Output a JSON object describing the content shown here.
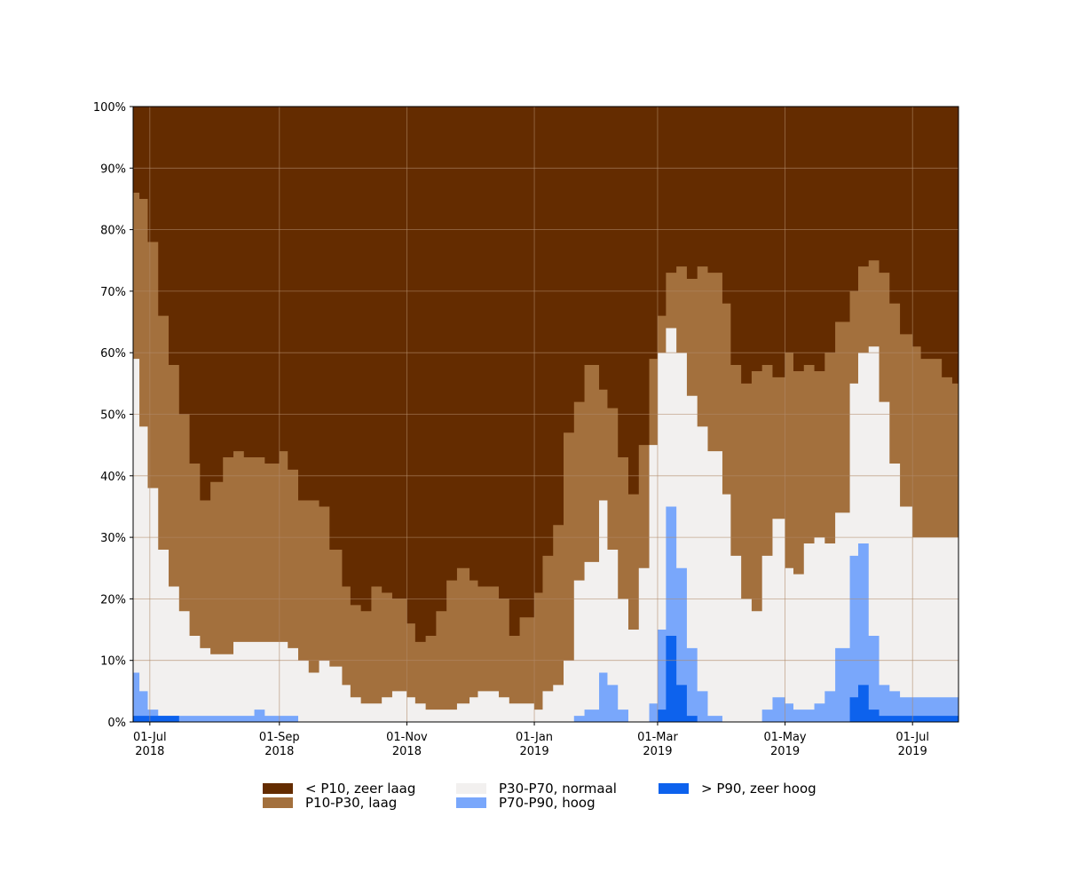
{
  "chart_data": {
    "type": "area",
    "stacked": true,
    "xlabel": "",
    "ylabel": "",
    "x_range": [
      "2018-06-23",
      "2019-07-23"
    ],
    "ylim": [
      0,
      100
    ],
    "grid": true,
    "legend_position": "bottom",
    "y_ticks": [
      "0%",
      "10%",
      "20%",
      "30%",
      "40%",
      "50%",
      "60%",
      "70%",
      "80%",
      "90%",
      "100%"
    ],
    "x_ticks": [
      {
        "date": "2018-07-01",
        "line1": "01-Jul",
        "line2": "2018"
      },
      {
        "date": "2018-09-01",
        "line1": "01-Sep",
        "line2": "2018"
      },
      {
        "date": "2018-11-01",
        "line1": "01-Nov",
        "line2": "2018"
      },
      {
        "date": "2019-01-01",
        "line1": "01-Jan",
        "line2": "2019"
      },
      {
        "date": "2019-03-01",
        "line1": "01-Mar",
        "line2": "2019"
      },
      {
        "date": "2019-05-01",
        "line1": "01-May",
        "line2": "2019"
      },
      {
        "date": "2019-07-01",
        "line1": "01-Jul",
        "line2": "2019"
      }
    ],
    "boundaries": {
      "x": [
        "2018-06-23",
        "2018-06-26",
        "2018-06-30",
        "2018-07-05",
        "2018-07-10",
        "2018-07-15",
        "2018-07-20",
        "2018-07-25",
        "2018-07-30",
        "2018-08-05",
        "2018-08-10",
        "2018-08-15",
        "2018-08-20",
        "2018-08-25",
        "2018-09-01",
        "2018-09-05",
        "2018-09-10",
        "2018-09-15",
        "2018-09-20",
        "2018-09-25",
        "2018-10-01",
        "2018-10-05",
        "2018-10-10",
        "2018-10-15",
        "2018-10-20",
        "2018-10-25",
        "2018-11-01",
        "2018-11-05",
        "2018-11-10",
        "2018-11-15",
        "2018-11-20",
        "2018-11-25",
        "2018-12-01",
        "2018-12-05",
        "2018-12-10",
        "2018-12-15",
        "2018-12-20",
        "2018-12-25",
        "2019-01-01",
        "2019-01-05",
        "2019-01-10",
        "2019-01-15",
        "2019-01-20",
        "2019-01-25",
        "2019-02-01",
        "2019-02-05",
        "2019-02-10",
        "2019-02-15",
        "2019-02-20",
        "2019-02-25",
        "2019-03-01",
        "2019-03-05",
        "2019-03-10",
        "2019-03-15",
        "2019-03-20",
        "2019-03-25",
        "2019-04-01",
        "2019-04-05",
        "2019-04-10",
        "2019-04-15",
        "2019-04-20",
        "2019-04-25",
        "2019-05-01",
        "2019-05-05",
        "2019-05-10",
        "2019-05-15",
        "2019-05-20",
        "2019-05-25",
        "2019-06-01",
        "2019-06-05",
        "2019-06-10",
        "2019-06-15",
        "2019-06-20",
        "2019-06-25",
        "2019-07-01",
        "2019-07-05",
        "2019-07-10",
        "2019-07-15",
        "2019-07-20",
        "2019-07-23"
      ],
      "le_p10": [
        86,
        85,
        78,
        66,
        58,
        50,
        42,
        36,
        39,
        43,
        44,
        43,
        43,
        42,
        44,
        41,
        36,
        36,
        35,
        28,
        22,
        19,
        18,
        22,
        21,
        20,
        16,
        13,
        14,
        18,
        23,
        25,
        23,
        22,
        22,
        20,
        14,
        17,
        21,
        27,
        32,
        47,
        52,
        58,
        54,
        51,
        43,
        37,
        45,
        59,
        66,
        73,
        74,
        72,
        74,
        73,
        68,
        58,
        55,
        57,
        58,
        56,
        60,
        57,
        58,
        57,
        60,
        65,
        70,
        74,
        75,
        73,
        68,
        63,
        61,
        59,
        59,
        56,
        55,
        53
      ],
      "le_p30": [
        59,
        48,
        38,
        28,
        22,
        18,
        14,
        12,
        11,
        11,
        13,
        13,
        13,
        13,
        13,
        12,
        10,
        8,
        10,
        9,
        6,
        4,
        3,
        3,
        4,
        5,
        4,
        3,
        2,
        2,
        2,
        3,
        4,
        5,
        5,
        4,
        3,
        3,
        2,
        5,
        6,
        10,
        23,
        26,
        36,
        28,
        20,
        15,
        25,
        45,
        60,
        64,
        60,
        53,
        48,
        44,
        37,
        27,
        20,
        18,
        27,
        33,
        25,
        24,
        29,
        30,
        29,
        34,
        55,
        60,
        61,
        52,
        42,
        35,
        30,
        30,
        30,
        30,
        30,
        25
      ],
      "le_p70": [
        8,
        5,
        2,
        1,
        1,
        1,
        1,
        1,
        1,
        1,
        1,
        1,
        2,
        1,
        1,
        1,
        0,
        0,
        0,
        0,
        0,
        0,
        0,
        0,
        0,
        0,
        0,
        0,
        0,
        0,
        0,
        0,
        0,
        0,
        0,
        0,
        0,
        0,
        0,
        0,
        0,
        0,
        1,
        2,
        8,
        6,
        2,
        0,
        0,
        3,
        15,
        35,
        25,
        12,
        5,
        1,
        0,
        0,
        0,
        0,
        2,
        4,
        3,
        2,
        2,
        3,
        5,
        12,
        27,
        29,
        14,
        6,
        5,
        4,
        4,
        4,
        4,
        4,
        4,
        4
      ],
      "le_p90": [
        1,
        1,
        1,
        1,
        1,
        0,
        0,
        0,
        0,
        0,
        0,
        0,
        0,
        0,
        0,
        0,
        0,
        0,
        0,
        0,
        0,
        0,
        0,
        0,
        0,
        0,
        0,
        0,
        0,
        0,
        0,
        0,
        0,
        0,
        0,
        0,
        0,
        0,
        0,
        0,
        0,
        0,
        0,
        0,
        0,
        0,
        0,
        0,
        0,
        0,
        2,
        14,
        6,
        1,
        0,
        0,
        0,
        0,
        0,
        0,
        0,
        0,
        0,
        0,
        0,
        0,
        0,
        0,
        4,
        6,
        2,
        1,
        1,
        1,
        1,
        1,
        1,
        1,
        1,
        1
      ]
    },
    "series": [
      {
        "name": "< P10, zeer laag",
        "color": "#642c00"
      },
      {
        "name": "P10-P30, laag",
        "color": "#a3703d"
      },
      {
        "name": "P30-P70, normaal",
        "color": "#f2f0ef"
      },
      {
        "name": "P70-P90, hoog",
        "color": "#79a7fb"
      },
      {
        "name": "> P90, zeer hoog",
        "color": "#0d62ed"
      }
    ]
  }
}
